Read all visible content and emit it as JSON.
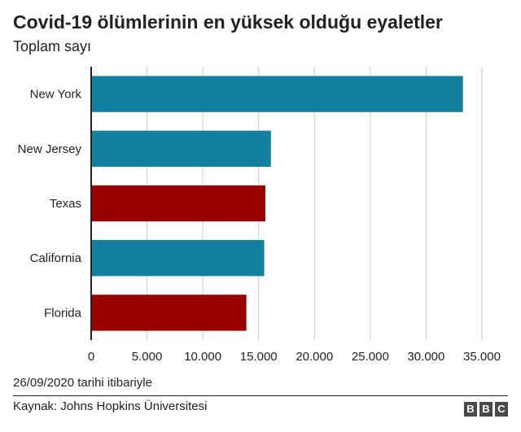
{
  "header": {
    "title": "Covid-19 ölümlerinin en yüksek olduğu eyaletler",
    "subtitle": "Toplam sayı"
  },
  "footer": {
    "date_note": "26/09/2020 tarihi itibariyle",
    "source": "Kaynak: Johns Hopkins Üniversitesi",
    "logo_letters": [
      "B",
      "B",
      "C"
    ]
  },
  "colors": {
    "blue": "#1380a1",
    "red": "#990000",
    "grid": "#cbcbcb",
    "axis": "#222222"
  },
  "chart_data": {
    "type": "bar",
    "orientation": "horizontal",
    "title": "Covid-19 ölümlerinin en yüksek olduğu eyaletler",
    "subtitle": "Toplam sayı",
    "categories": [
      "New York",
      "New Jersey",
      "Texas",
      "California",
      "Florida"
    ],
    "values": [
      33300,
      16100,
      15600,
      15500,
      13900
    ],
    "bar_colors": [
      "#1380a1",
      "#1380a1",
      "#990000",
      "#1380a1",
      "#990000"
    ],
    "xlim": [
      0,
      35000
    ],
    "xticks": [
      0,
      5000,
      10000,
      15000,
      20000,
      25000,
      30000,
      35000
    ],
    "xtick_labels": [
      "0",
      "5.000",
      "10.000",
      "15.000",
      "20.000",
      "25.000",
      "30.000",
      "35.000"
    ],
    "grid": true
  }
}
